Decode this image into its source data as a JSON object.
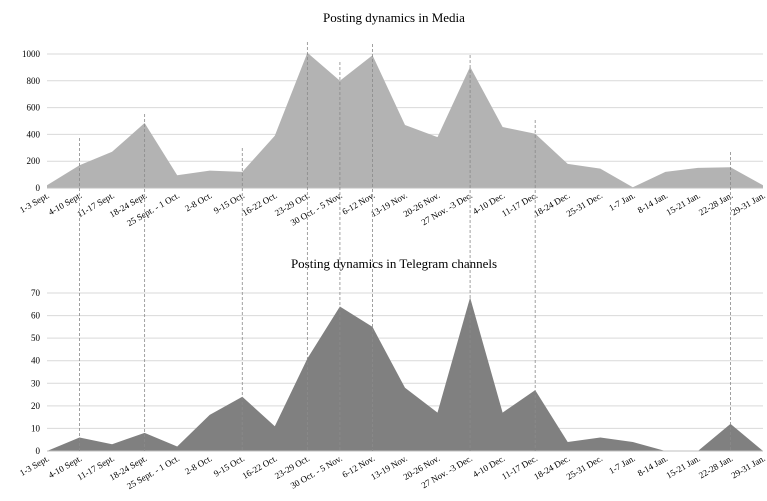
{
  "chart_data": [
    {
      "type": "area",
      "title": "Posting dynamics in Media",
      "categories": [
        "1-3 Sept.",
        "4-10 Sept.",
        "11-17 Sept.",
        "18-24 Sept.",
        "25 Sept. - 1 Oct.",
        "2-8 Oct.",
        "9-15 Oct.",
        "16-22 Oct.",
        "23-29 Oct.",
        "30 Oct. - 5 Nov.",
        "6-12 Nov.",
        "13-19 Nov.",
        "20-26 Nov.",
        "27 Nov. -3 Dec.",
        "4-10 Dec.",
        "11-17 Dec.",
        "18-24 Dec.",
        "25-31 Dec.",
        "1-7 Jan.",
        "8-14 Jan.",
        "15-21 Jan.",
        "22-28 Jan.",
        "29-31 Jan."
      ],
      "values": [
        20,
        170,
        270,
        485,
        95,
        130,
        120,
        390,
        1010,
        800,
        990,
        470,
        380,
        905,
        455,
        405,
        180,
        145,
        5,
        120,
        150,
        155,
        20
      ],
      "ylim": [
        0,
        1000
      ],
      "yticks": [
        0,
        200,
        400,
        600,
        800,
        1000
      ],
      "grid": true,
      "color": "#b3b3b3"
    },
    {
      "type": "area",
      "title": "Posting dynamics in Telegram channels",
      "categories": [
        "1-3 Sept.",
        "4-10 Sept.",
        "11-17 Sept.",
        "18-24 Sept.",
        "25 Sept. - 1 Oct.",
        "2-8 Oct.",
        "9-15 Oct.",
        "16-22 Oct.",
        "23-29 Oct.",
        "30 Oct. - 5 Nov.",
        "6-12 Nov.",
        "13-19 Nov.",
        "20-26 Nov.",
        "27 Nov. -3 Dec.",
        "4-10 Dec.",
        "11-17 Dec.",
        "18-24 Dec.",
        "25-31 Dec.",
        "1-7 Jan.",
        "8-14 Jan.",
        "15-21 Jan.",
        "22-28 Jan.",
        "29-31 Jan."
      ],
      "values": [
        0,
        6,
        3,
        8,
        2,
        16,
        24,
        11,
        41,
        64,
        55,
        28,
        17,
        68,
        17,
        27,
        4,
        6,
        4,
        0,
        0,
        12,
        0
      ],
      "ylim": [
        0,
        70
      ],
      "yticks": [
        0,
        10,
        20,
        30,
        40,
        50,
        60,
        70
      ],
      "grid": true,
      "color": "#808080"
    }
  ]
}
